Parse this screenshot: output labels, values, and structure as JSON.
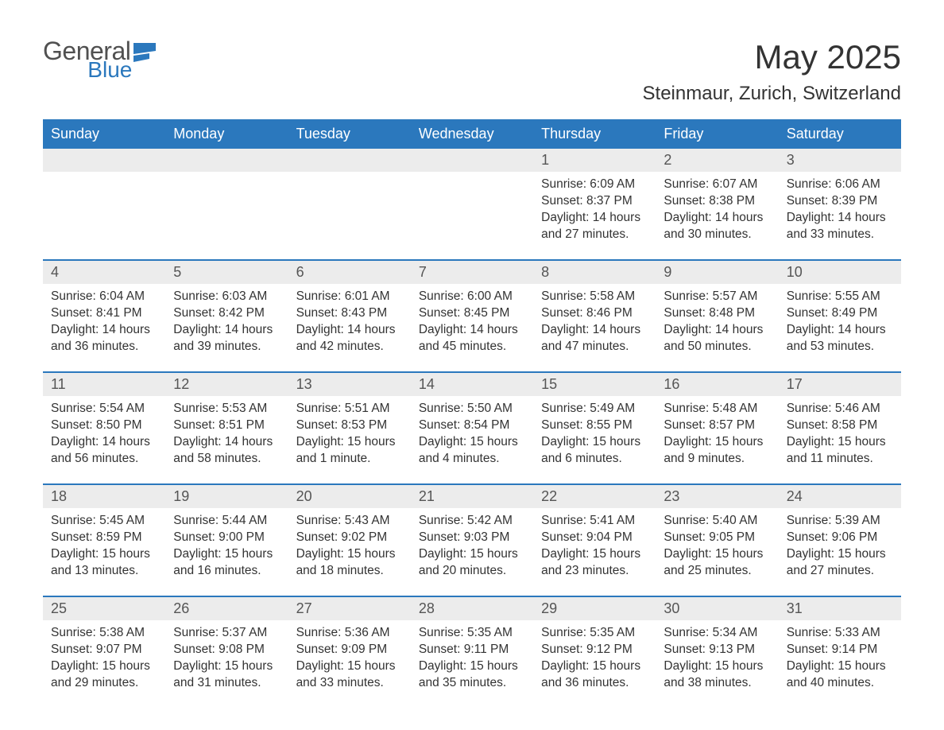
{
  "brand": {
    "word1": "General",
    "word2": "Blue",
    "logo_color": "#2b78bd"
  },
  "title": "May 2025",
  "location": "Steinmaur, Zurich, Switzerland",
  "colors": {
    "header_bg": "#2b78bd",
    "header_text": "#ffffff",
    "daynum_bg": "#ececec",
    "text": "#333333",
    "separator": "#2b78bd"
  },
  "day_names": [
    "Sunday",
    "Monday",
    "Tuesday",
    "Wednesday",
    "Thursday",
    "Friday",
    "Saturday"
  ],
  "weeks": [
    [
      {
        "day": "",
        "sunrise": "",
        "sunset": "",
        "daylight": ""
      },
      {
        "day": "",
        "sunrise": "",
        "sunset": "",
        "daylight": ""
      },
      {
        "day": "",
        "sunrise": "",
        "sunset": "",
        "daylight": ""
      },
      {
        "day": "",
        "sunrise": "",
        "sunset": "",
        "daylight": ""
      },
      {
        "day": "1",
        "sunrise": "Sunrise: 6:09 AM",
        "sunset": "Sunset: 8:37 PM",
        "daylight": "Daylight: 14 hours and 27 minutes."
      },
      {
        "day": "2",
        "sunrise": "Sunrise: 6:07 AM",
        "sunset": "Sunset: 8:38 PM",
        "daylight": "Daylight: 14 hours and 30 minutes."
      },
      {
        "day": "3",
        "sunrise": "Sunrise: 6:06 AM",
        "sunset": "Sunset: 8:39 PM",
        "daylight": "Daylight: 14 hours and 33 minutes."
      }
    ],
    [
      {
        "day": "4",
        "sunrise": "Sunrise: 6:04 AM",
        "sunset": "Sunset: 8:41 PM",
        "daylight": "Daylight: 14 hours and 36 minutes."
      },
      {
        "day": "5",
        "sunrise": "Sunrise: 6:03 AM",
        "sunset": "Sunset: 8:42 PM",
        "daylight": "Daylight: 14 hours and 39 minutes."
      },
      {
        "day": "6",
        "sunrise": "Sunrise: 6:01 AM",
        "sunset": "Sunset: 8:43 PM",
        "daylight": "Daylight: 14 hours and 42 minutes."
      },
      {
        "day": "7",
        "sunrise": "Sunrise: 6:00 AM",
        "sunset": "Sunset: 8:45 PM",
        "daylight": "Daylight: 14 hours and 45 minutes."
      },
      {
        "day": "8",
        "sunrise": "Sunrise: 5:58 AM",
        "sunset": "Sunset: 8:46 PM",
        "daylight": "Daylight: 14 hours and 47 minutes."
      },
      {
        "day": "9",
        "sunrise": "Sunrise: 5:57 AM",
        "sunset": "Sunset: 8:48 PM",
        "daylight": "Daylight: 14 hours and 50 minutes."
      },
      {
        "day": "10",
        "sunrise": "Sunrise: 5:55 AM",
        "sunset": "Sunset: 8:49 PM",
        "daylight": "Daylight: 14 hours and 53 minutes."
      }
    ],
    [
      {
        "day": "11",
        "sunrise": "Sunrise: 5:54 AM",
        "sunset": "Sunset: 8:50 PM",
        "daylight": "Daylight: 14 hours and 56 minutes."
      },
      {
        "day": "12",
        "sunrise": "Sunrise: 5:53 AM",
        "sunset": "Sunset: 8:51 PM",
        "daylight": "Daylight: 14 hours and 58 minutes."
      },
      {
        "day": "13",
        "sunrise": "Sunrise: 5:51 AM",
        "sunset": "Sunset: 8:53 PM",
        "daylight": "Daylight: 15 hours and 1 minute."
      },
      {
        "day": "14",
        "sunrise": "Sunrise: 5:50 AM",
        "sunset": "Sunset: 8:54 PM",
        "daylight": "Daylight: 15 hours and 4 minutes."
      },
      {
        "day": "15",
        "sunrise": "Sunrise: 5:49 AM",
        "sunset": "Sunset: 8:55 PM",
        "daylight": "Daylight: 15 hours and 6 minutes."
      },
      {
        "day": "16",
        "sunrise": "Sunrise: 5:48 AM",
        "sunset": "Sunset: 8:57 PM",
        "daylight": "Daylight: 15 hours and 9 minutes."
      },
      {
        "day": "17",
        "sunrise": "Sunrise: 5:46 AM",
        "sunset": "Sunset: 8:58 PM",
        "daylight": "Daylight: 15 hours and 11 minutes."
      }
    ],
    [
      {
        "day": "18",
        "sunrise": "Sunrise: 5:45 AM",
        "sunset": "Sunset: 8:59 PM",
        "daylight": "Daylight: 15 hours and 13 minutes."
      },
      {
        "day": "19",
        "sunrise": "Sunrise: 5:44 AM",
        "sunset": "Sunset: 9:00 PM",
        "daylight": "Daylight: 15 hours and 16 minutes."
      },
      {
        "day": "20",
        "sunrise": "Sunrise: 5:43 AM",
        "sunset": "Sunset: 9:02 PM",
        "daylight": "Daylight: 15 hours and 18 minutes."
      },
      {
        "day": "21",
        "sunrise": "Sunrise: 5:42 AM",
        "sunset": "Sunset: 9:03 PM",
        "daylight": "Daylight: 15 hours and 20 minutes."
      },
      {
        "day": "22",
        "sunrise": "Sunrise: 5:41 AM",
        "sunset": "Sunset: 9:04 PM",
        "daylight": "Daylight: 15 hours and 23 minutes."
      },
      {
        "day": "23",
        "sunrise": "Sunrise: 5:40 AM",
        "sunset": "Sunset: 9:05 PM",
        "daylight": "Daylight: 15 hours and 25 minutes."
      },
      {
        "day": "24",
        "sunrise": "Sunrise: 5:39 AM",
        "sunset": "Sunset: 9:06 PM",
        "daylight": "Daylight: 15 hours and 27 minutes."
      }
    ],
    [
      {
        "day": "25",
        "sunrise": "Sunrise: 5:38 AM",
        "sunset": "Sunset: 9:07 PM",
        "daylight": "Daylight: 15 hours and 29 minutes."
      },
      {
        "day": "26",
        "sunrise": "Sunrise: 5:37 AM",
        "sunset": "Sunset: 9:08 PM",
        "daylight": "Daylight: 15 hours and 31 minutes."
      },
      {
        "day": "27",
        "sunrise": "Sunrise: 5:36 AM",
        "sunset": "Sunset: 9:09 PM",
        "daylight": "Daylight: 15 hours and 33 minutes."
      },
      {
        "day": "28",
        "sunrise": "Sunrise: 5:35 AM",
        "sunset": "Sunset: 9:11 PM",
        "daylight": "Daylight: 15 hours and 35 minutes."
      },
      {
        "day": "29",
        "sunrise": "Sunrise: 5:35 AM",
        "sunset": "Sunset: 9:12 PM",
        "daylight": "Daylight: 15 hours and 36 minutes."
      },
      {
        "day": "30",
        "sunrise": "Sunrise: 5:34 AM",
        "sunset": "Sunset: 9:13 PM",
        "daylight": "Daylight: 15 hours and 38 minutes."
      },
      {
        "day": "31",
        "sunrise": "Sunrise: 5:33 AM",
        "sunset": "Sunset: 9:14 PM",
        "daylight": "Daylight: 15 hours and 40 minutes."
      }
    ]
  ]
}
